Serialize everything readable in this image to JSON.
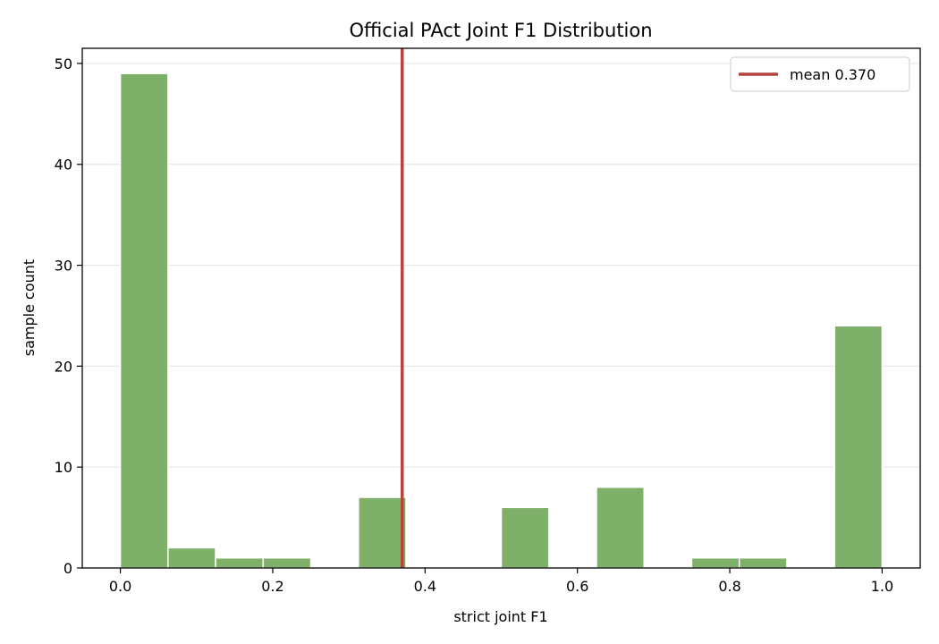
{
  "chart_data": {
    "type": "bar",
    "title": "Official PAct Joint F1 Distribution",
    "xlabel": "strict joint F1",
    "ylabel": "sample count",
    "xlim": [
      -0.05,
      1.05
    ],
    "ylim": [
      0,
      51.5
    ],
    "xticks": [
      0.0,
      0.2,
      0.4,
      0.6,
      0.8,
      1.0
    ],
    "xtick_labels": [
      "0.0",
      "0.2",
      "0.4",
      "0.6",
      "0.8",
      "1.0"
    ],
    "yticks": [
      0,
      10,
      20,
      30,
      40,
      50
    ],
    "ytick_labels": [
      "0",
      "10",
      "20",
      "30",
      "40",
      "50"
    ],
    "grid": "y",
    "bin_edges": [
      0.0,
      0.0625,
      0.125,
      0.1875,
      0.25,
      0.3125,
      0.375,
      0.4375,
      0.5,
      0.5625,
      0.625,
      0.6875,
      0.75,
      0.8125,
      0.875,
      0.9375,
      1.0
    ],
    "values": [
      49,
      2,
      1,
      1,
      0,
      7,
      0,
      0,
      6,
      0,
      8,
      0,
      1,
      1,
      0,
      24
    ],
    "bar_color": "#7fb069",
    "mean": 0.37,
    "mean_color": "#b5443d",
    "legend": {
      "label": "mean 0.370",
      "placement": "top-right"
    }
  }
}
